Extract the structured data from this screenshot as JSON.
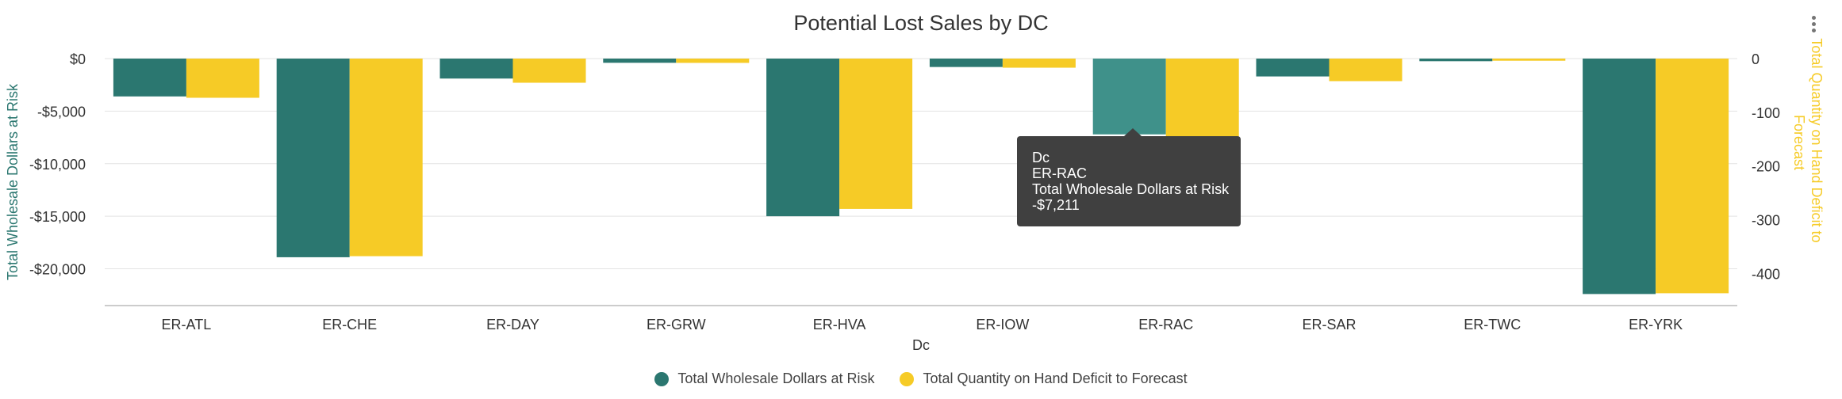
{
  "colors": {
    "series1": "#2b7770",
    "series1_highlight": "#3f918a",
    "series2": "#f6cb26",
    "grid": "#e3e3e3",
    "text": "#333333"
  },
  "chart_data": {
    "type": "bar",
    "title": "Potential Lost Sales by DC",
    "xlabel": "Dc",
    "ylabel": "Total Wholesale Dollars at Risk",
    "y2label": "Total Quantity on Hand Deficit to Forecast",
    "categories": [
      "ER-ATL",
      "ER-CHE",
      "ER-DAY",
      "ER-GRW",
      "ER-HVA",
      "ER-IOW",
      "ER-RAC",
      "ER-SAR",
      "ER-TWC",
      "ER-YRK"
    ],
    "series": [
      {
        "name": "Total Wholesale Dollars at Risk",
        "axis": "left",
        "values": [
          -3600,
          -18900,
          -1900,
          -400,
          -15000,
          -800,
          -7211,
          -1700,
          -250,
          -22400
        ]
      },
      {
        "name": "Total Quantity on Hand Deficit to Forecast",
        "axis": "right",
        "values": [
          -73,
          -368,
          -45,
          -8,
          -280,
          -17,
          -145,
          -42,
          -4,
          -437
        ]
      }
    ],
    "ylim": [
      -23500,
      0
    ],
    "y_ticks": [
      0,
      -5000,
      -10000,
      -15000,
      -20000
    ],
    "y_tick_labels": [
      "$0",
      "-$5,000",
      "-$10,000",
      "-$15,000",
      "-$20,000"
    ],
    "y2lim": [
      -460,
      0
    ],
    "y2_ticks": [
      0,
      -100,
      -200,
      -300,
      -400
    ],
    "y2_tick_labels": [
      "0",
      "-100",
      "-200",
      "-300",
      "-400"
    ],
    "highlighted_category": "ER-RAC",
    "legend_position": "bottom",
    "grid": true
  },
  "tooltip": {
    "line1": "Dc",
    "line2": "ER-RAC",
    "line3": "Total Wholesale Dollars at Risk",
    "line4": "-$7,211"
  },
  "menu": {
    "icon": "vertical-dots-icon"
  }
}
